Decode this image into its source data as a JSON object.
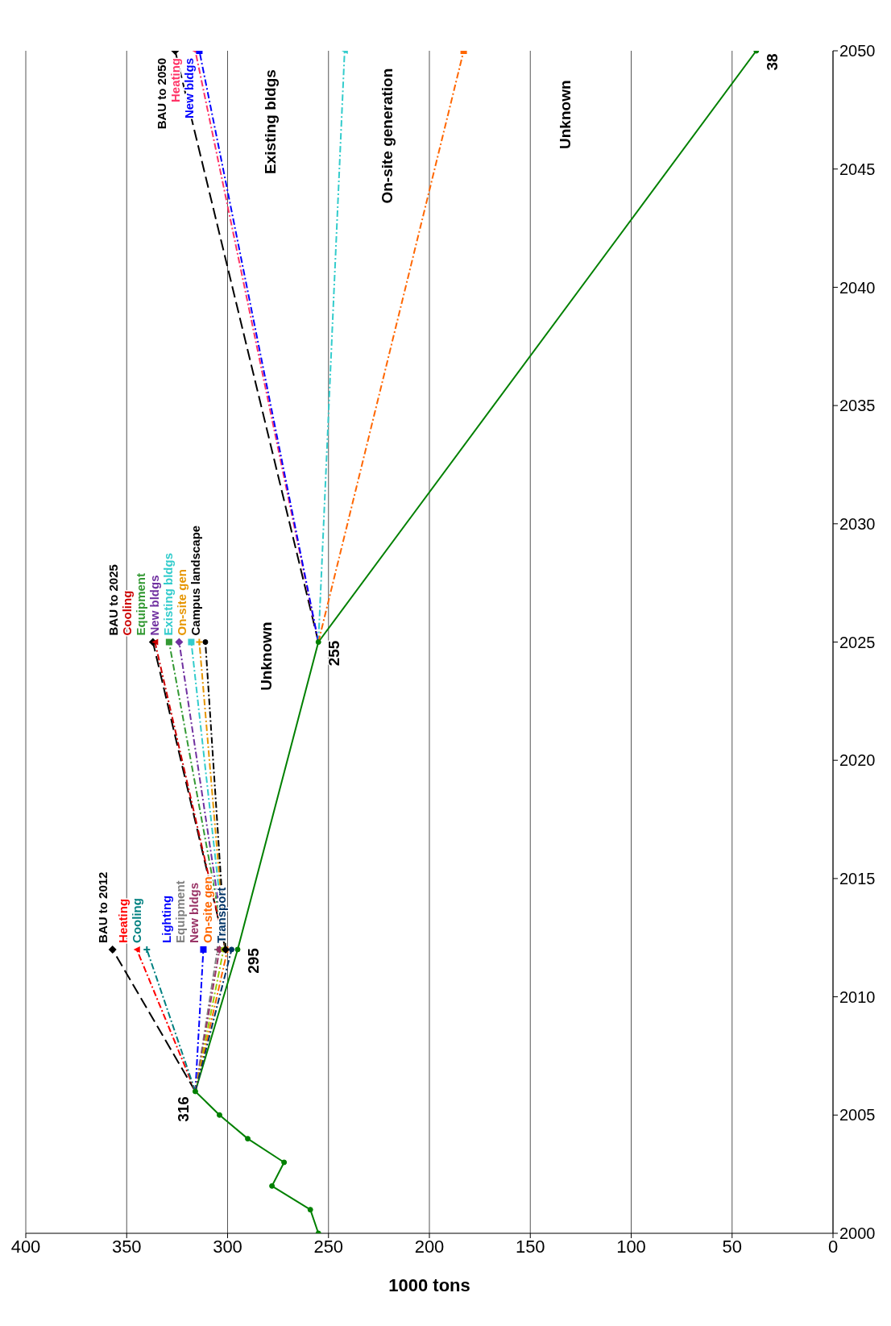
{
  "chart_data": {
    "type": "line",
    "xlabel": "1000 tons",
    "xlim": [
      400,
      0
    ],
    "xticks": [
      400,
      350,
      300,
      250,
      200,
      150,
      100,
      50,
      0
    ],
    "ylim": [
      2000,
      2050
    ],
    "yticks": [
      2000,
      2005,
      2010,
      2015,
      2020,
      2025,
      2030,
      2035,
      2040,
      2045,
      2050
    ],
    "grid": "x",
    "annotations": [
      "Unknown",
      "Existing bldgs",
      "On-site generation",
      "Unknown",
      {
        "text": "316",
        "x": 316,
        "y": 2006
      },
      {
        "text": "295",
        "x": 295,
        "y": 2012
      },
      {
        "text": "255",
        "x": 255,
        "y": 2025
      },
      {
        "text": "38",
        "x": 38,
        "y": 2050
      }
    ],
    "series": [
      {
        "color": "#008000",
        "line_style": "solid",
        "marker": "circle",
        "x": [
          255,
          259,
          278,
          272,
          290,
          304,
          316,
          295,
          255,
          38
        ],
        "values": [
          2000,
          2001,
          2002,
          2003,
          2004,
          2005,
          2006,
          2012,
          2025,
          2050
        ]
      },
      {
        "name": "BAU to 2012",
        "color": "#000000",
        "line_style": "dashed",
        "marker": "diamond",
        "x": [
          316,
          357
        ],
        "values": [
          2006,
          2012
        ]
      },
      {
        "name": "Heating",
        "color": "#ff0000",
        "line_style": "dotted",
        "marker": "triangle",
        "x": [
          316,
          345
        ],
        "values": [
          2006,
          2012
        ]
      },
      {
        "name": "Cooling",
        "color": "#008080",
        "line_style": "dotted",
        "marker": "cross",
        "x": [
          316,
          340
        ],
        "values": [
          2006,
          2012
        ]
      },
      {
        "name": "Lighting",
        "color": "#0000ff",
        "line_style": "dotted",
        "marker": "square",
        "x": [
          316,
          312
        ],
        "values": [
          2006,
          2012
        ]
      },
      {
        "name": "Equipment",
        "color": "#808080",
        "line_style": "dotted",
        "marker": "cross",
        "x": [
          316,
          305
        ],
        "values": [
          2006,
          2012
        ]
      },
      {
        "name": "New bldgs",
        "color": "#993366",
        "line_style": "dotted",
        "marker": "diamond",
        "x": [
          316,
          304
        ],
        "values": [
          2006,
          2012
        ]
      },
      {
        "color": "#99cc00",
        "line_style": "dotted",
        "marker": "circle",
        "x": [
          316,
          302
        ],
        "values": [
          2006,
          2012
        ]
      },
      {
        "name": "On-site gen",
        "color": "#ff6600",
        "line_style": "dotted",
        "marker": "cross",
        "x": [
          316,
          300
        ],
        "values": [
          2006,
          2012
        ]
      },
      {
        "name": "Transport",
        "color": "#003366",
        "line_style": "dotted",
        "marker": "circle",
        "x": [
          316,
          298
        ],
        "values": [
          2006,
          2012
        ]
      },
      {
        "name": "BAU to 2025",
        "color": "#000000",
        "line_style": "dashed",
        "marker": "diamond",
        "x": [
          301,
          337
        ],
        "values": [
          2012,
          2025
        ]
      },
      {
        "name": "Cooling",
        "color": "#cc0000",
        "line_style": "dotted",
        "marker": "triangle",
        "x": [
          301,
          336
        ],
        "values": [
          2012,
          2025
        ]
      },
      {
        "name": "Equipment",
        "color": "#339933",
        "line_style": "dotted",
        "marker": "square",
        "x": [
          301,
          329
        ],
        "values": [
          2012,
          2025
        ]
      },
      {
        "name": "New bldgs",
        "color": "#7030a0",
        "line_style": "dotted",
        "marker": "diamond",
        "x": [
          301,
          324
        ],
        "values": [
          2012,
          2025
        ]
      },
      {
        "name": "Existing bldgs",
        "color": "#33cccc",
        "line_style": "dotted",
        "marker": "square",
        "x": [
          301,
          318
        ],
        "values": [
          2012,
          2025
        ]
      },
      {
        "name": "On-site gen",
        "color": "#e69500",
        "line_style": "dotted",
        "marker": "cross",
        "x": [
          301,
          314
        ],
        "values": [
          2012,
          2025
        ]
      },
      {
        "name": "Campus landscape",
        "color": "#000000",
        "line_style": "dotted",
        "marker": "circle",
        "x": [
          301,
          311
        ],
        "values": [
          2012,
          2025
        ]
      },
      {
        "name": "BAU to 2050",
        "color": "#000000",
        "line_style": "dashed",
        "marker": "diamond",
        "x": [
          255,
          326
        ],
        "values": [
          2025,
          2050
        ]
      },
      {
        "name": "Heating",
        "color": "#ff3366",
        "line_style": "dotted",
        "marker": "triangle",
        "x": [
          255,
          316
        ],
        "values": [
          2025,
          2050
        ]
      },
      {
        "name": "New bldgs",
        "color": "#0000ff",
        "line_style": "dotted",
        "marker": "square",
        "x": [
          255,
          314
        ],
        "values": [
          2025,
          2050
        ]
      },
      {
        "color": "#33cccc",
        "line_style": "dotted",
        "marker": "triangle",
        "x": [
          255,
          242
        ],
        "values": [
          2025,
          2050
        ]
      },
      {
        "color": "#ff6600",
        "line_style": "dotted",
        "marker": "square",
        "x": [
          255,
          183
        ],
        "values": [
          2025,
          2050
        ]
      }
    ]
  }
}
